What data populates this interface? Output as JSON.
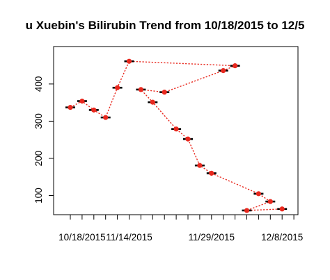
{
  "chart_data": {
    "type": "scatter",
    "title": "u Xuebin's Bilirubin Trend from 10/18/2015 to 12/5",
    "xlabel": "",
    "ylabel": "",
    "x_tick_labels": [
      "10/18/2015",
      "11/14/2015",
      "11/29/2015",
      "12/8/2015"
    ],
    "y_tick_labels": [
      "100",
      "200",
      "300",
      "400"
    ],
    "ylim": [
      50,
      480
    ],
    "grid": false,
    "series": [
      {
        "connector": "dotted",
        "color": "#e8281e",
        "points": [
          {
            "tick": 1,
            "y": 337
          },
          {
            "tick": 2,
            "y": 354
          },
          {
            "tick": 3,
            "y": 330
          },
          {
            "tick": 4,
            "y": 310
          },
          {
            "tick": 5,
            "y": 390
          },
          {
            "tick": 6,
            "y": 461
          },
          {
            "tick": 15,
            "y": 449
          },
          {
            "tick": 14,
            "y": 436
          },
          {
            "tick": 9,
            "y": 378
          },
          {
            "tick": 7,
            "y": 385
          },
          {
            "tick": 8,
            "y": 351
          },
          {
            "tick": 10,
            "y": 279
          },
          {
            "tick": 11,
            "y": 252
          },
          {
            "tick": 12,
            "y": 181
          },
          {
            "tick": 13,
            "y": 160
          },
          {
            "tick": 17,
            "y": 105
          },
          {
            "tick": 18,
            "y": 84
          },
          {
            "tick": 16,
            "y": 60
          },
          {
            "tick": 19,
            "y": 64
          }
        ]
      }
    ]
  }
}
